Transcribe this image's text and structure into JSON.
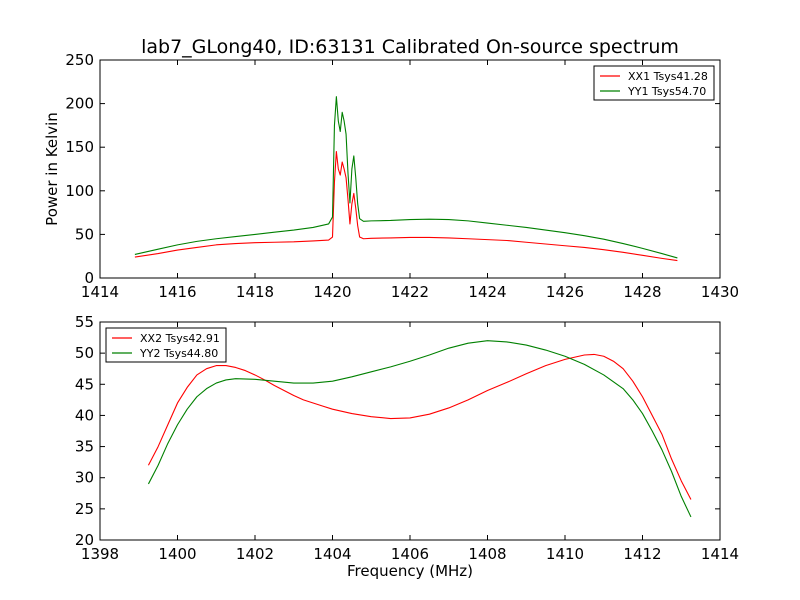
{
  "figure_title": "lab7_GLong40, ID:63131 Calibrated On-source spectrum",
  "colors": {
    "red": "#ff0000",
    "green": "#008000",
    "axis": "#000000"
  },
  "chart_data": [
    {
      "type": "line",
      "xlabel": "",
      "ylabel": "Power in Kelvin",
      "xlim": [
        1414,
        1430
      ],
      "ylim": [
        0,
        250
      ],
      "xticks": [
        1414,
        1416,
        1418,
        1420,
        1422,
        1424,
        1426,
        1428,
        1430
      ],
      "yticks": [
        0,
        50,
        100,
        150,
        200,
        250
      ],
      "legend_position": "top-right",
      "grid": false,
      "series": [
        {
          "name": "XX1 Tsys41.28",
          "color": "#ff0000",
          "points": [
            [
              1414.9,
              24
            ],
            [
              1415.5,
              28
            ],
            [
              1416.0,
              32
            ],
            [
              1416.5,
              35
            ],
            [
              1417.0,
              38
            ],
            [
              1417.5,
              39.5
            ],
            [
              1418.0,
              40.5
            ],
            [
              1418.5,
              41
            ],
            [
              1419.0,
              41.5
            ],
            [
              1419.5,
              42.5
            ],
            [
              1419.9,
              43.5
            ],
            [
              1420.0,
              47
            ],
            [
              1420.05,
              110
            ],
            [
              1420.1,
              145
            ],
            [
              1420.15,
              125
            ],
            [
              1420.2,
              118
            ],
            [
              1420.25,
              133
            ],
            [
              1420.3,
              125
            ],
            [
              1420.35,
              115
            ],
            [
              1420.4,
              90
            ],
            [
              1420.45,
              62
            ],
            [
              1420.5,
              85
            ],
            [
              1420.55,
              97
            ],
            [
              1420.6,
              80
            ],
            [
              1420.65,
              60
            ],
            [
              1420.7,
              47
            ],
            [
              1420.8,
              45
            ],
            [
              1421.0,
              45.5
            ],
            [
              1421.5,
              46
            ],
            [
              1422.0,
              46.5
            ],
            [
              1422.5,
              46.5
            ],
            [
              1423.0,
              46
            ],
            [
              1423.5,
              45
            ],
            [
              1424.0,
              44
            ],
            [
              1424.5,
              43
            ],
            [
              1425.0,
              41
            ],
            [
              1425.5,
              39
            ],
            [
              1426.0,
              37
            ],
            [
              1426.5,
              35
            ],
            [
              1427.0,
              32.5
            ],
            [
              1427.5,
              29.5
            ],
            [
              1428.0,
              26
            ],
            [
              1428.5,
              22.5
            ],
            [
              1428.9,
              20
            ]
          ]
        },
        {
          "name": "YY1 Tsys54.70",
          "color": "#008000",
          "points": [
            [
              1414.9,
              27
            ],
            [
              1415.5,
              33
            ],
            [
              1416.0,
              38
            ],
            [
              1416.5,
              42
            ],
            [
              1417.0,
              45
            ],
            [
              1417.5,
              47.5
            ],
            [
              1418.0,
              50
            ],
            [
              1418.5,
              52.5
            ],
            [
              1419.0,
              55
            ],
            [
              1419.5,
              58
            ],
            [
              1419.9,
              62
            ],
            [
              1420.0,
              70
            ],
            [
              1420.05,
              175
            ],
            [
              1420.1,
              208
            ],
            [
              1420.15,
              180
            ],
            [
              1420.2,
              168
            ],
            [
              1420.25,
              190
            ],
            [
              1420.3,
              180
            ],
            [
              1420.35,
              165
            ],
            [
              1420.4,
              120
            ],
            [
              1420.45,
              86
            ],
            [
              1420.5,
              125
            ],
            [
              1420.55,
              140
            ],
            [
              1420.6,
              115
            ],
            [
              1420.65,
              85
            ],
            [
              1420.7,
              68
            ],
            [
              1420.8,
              65
            ],
            [
              1421.0,
              65.5
            ],
            [
              1421.5,
              66
            ],
            [
              1422.0,
              67
            ],
            [
              1422.5,
              67.5
            ],
            [
              1423.0,
              67
            ],
            [
              1423.5,
              65.5
            ],
            [
              1424.0,
              63
            ],
            [
              1424.5,
              60.5
            ],
            [
              1425.0,
              58
            ],
            [
              1425.5,
              55
            ],
            [
              1426.0,
              52
            ],
            [
              1426.5,
              48.5
            ],
            [
              1427.0,
              44.5
            ],
            [
              1427.5,
              39.5
            ],
            [
              1428.0,
              34
            ],
            [
              1428.5,
              28
            ],
            [
              1428.9,
              23
            ]
          ]
        }
      ]
    },
    {
      "type": "line",
      "xlabel": "Frequency (MHz)",
      "ylabel": "",
      "xlim": [
        1398,
        1414
      ],
      "ylim": [
        20,
        55
      ],
      "xticks": [
        1398,
        1400,
        1402,
        1404,
        1406,
        1408,
        1410,
        1412,
        1414
      ],
      "yticks": [
        20,
        25,
        30,
        35,
        40,
        45,
        50,
        55
      ],
      "legend_position": "top-left",
      "grid": false,
      "series": [
        {
          "name": "XX2 Tsys42.91",
          "color": "#ff0000",
          "points": [
            [
              1399.25,
              32
            ],
            [
              1399.5,
              35
            ],
            [
              1399.75,
              38.5
            ],
            [
              1400.0,
              42
            ],
            [
              1400.25,
              44.5
            ],
            [
              1400.5,
              46.5
            ],
            [
              1400.75,
              47.5
            ],
            [
              1401.0,
              48
            ],
            [
              1401.25,
              48
            ],
            [
              1401.5,
              47.7
            ],
            [
              1401.75,
              47.2
            ],
            [
              1402.0,
              46.5
            ],
            [
              1402.25,
              45.7
            ],
            [
              1402.5,
              44.8
            ],
            [
              1402.75,
              44
            ],
            [
              1403.0,
              43.2
            ],
            [
              1403.25,
              42.5
            ],
            [
              1403.5,
              42
            ],
            [
              1403.75,
              41.5
            ],
            [
              1404.0,
              41
            ],
            [
              1404.5,
              40.3
            ],
            [
              1405.0,
              39.8
            ],
            [
              1405.5,
              39.5
            ],
            [
              1406.0,
              39.6
            ],
            [
              1406.5,
              40.2
            ],
            [
              1407.0,
              41.2
            ],
            [
              1407.5,
              42.5
            ],
            [
              1408.0,
              44
            ],
            [
              1408.5,
              45.3
            ],
            [
              1409.0,
              46.7
            ],
            [
              1409.5,
              48
            ],
            [
              1410.0,
              49
            ],
            [
              1410.5,
              49.7
            ],
            [
              1410.75,
              49.8
            ],
            [
              1411.0,
              49.5
            ],
            [
              1411.25,
              48.7
            ],
            [
              1411.5,
              47.5
            ],
            [
              1411.75,
              45.5
            ],
            [
              1412.0,
              43
            ],
            [
              1412.25,
              40
            ],
            [
              1412.5,
              37
            ],
            [
              1412.75,
              33
            ],
            [
              1413.0,
              29.5
            ],
            [
              1413.25,
              26.5
            ]
          ]
        },
        {
          "name": "YY2 Tsys44.80",
          "color": "#008000",
          "points": [
            [
              1399.25,
              29
            ],
            [
              1399.5,
              32
            ],
            [
              1399.75,
              35.5
            ],
            [
              1400.0,
              38.5
            ],
            [
              1400.25,
              41
            ],
            [
              1400.5,
              43
            ],
            [
              1400.75,
              44.3
            ],
            [
              1401.0,
              45.2
            ],
            [
              1401.25,
              45.7
            ],
            [
              1401.5,
              45.9
            ],
            [
              1402.0,
              45.8
            ],
            [
              1402.5,
              45.5
            ],
            [
              1403.0,
              45.2
            ],
            [
              1403.5,
              45.2
            ],
            [
              1404.0,
              45.5
            ],
            [
              1404.5,
              46.2
            ],
            [
              1405.0,
              47
            ],
            [
              1405.5,
              47.8
            ],
            [
              1406.0,
              48.7
            ],
            [
              1406.5,
              49.7
            ],
            [
              1407.0,
              50.8
            ],
            [
              1407.5,
              51.6
            ],
            [
              1408.0,
              52
            ],
            [
              1408.5,
              51.8
            ],
            [
              1409.0,
              51.3
            ],
            [
              1409.5,
              50.5
            ],
            [
              1410.0,
              49.5
            ],
            [
              1410.5,
              48.2
            ],
            [
              1411.0,
              46.5
            ],
            [
              1411.5,
              44.3
            ],
            [
              1411.75,
              42.5
            ],
            [
              1412.0,
              40.3
            ],
            [
              1412.25,
              37.5
            ],
            [
              1412.5,
              34.5
            ],
            [
              1412.75,
              31
            ],
            [
              1413.0,
              27
            ],
            [
              1413.25,
              23.7
            ]
          ]
        }
      ]
    }
  ]
}
